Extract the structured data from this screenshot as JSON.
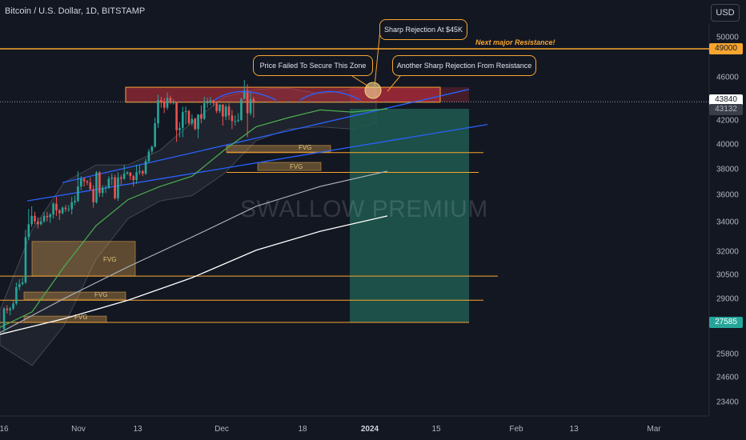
{
  "header": {
    "symbol_title": "Bitcoin / U.S. Dollar, 1D, BITSTAMP",
    "currency_button": "USD"
  },
  "watermark": "SWALLOW PREMIUM",
  "annotations": {
    "callouts": [
      {
        "text": "Sharp Rejection At $45K"
      },
      {
        "text": "Price Failed To Secure This Zone"
      },
      {
        "text": "Another Sharp Rejection From Resistance"
      }
    ],
    "resistance_label": "Next major Resistance!",
    "fvg_labels": [
      "FVG",
      "FVG",
      "FVG",
      "FVG",
      "FVG"
    ]
  },
  "colors": {
    "background": "#131722",
    "up_candle": "#26a69a",
    "down_candle": "#ef5350",
    "resistance": "#f7a530",
    "channel": "#2962ff",
    "ema_fast": "#4caf50",
    "ma_slow": "#b2b5be",
    "ma_slowest": "#ffffff",
    "target_zone": "#1e5b4f"
  },
  "chart_data": {
    "type": "candlestick",
    "title": "Bitcoin / U.S. Dollar, 1D, BITSTAMP",
    "x_tick_labels": [
      "16",
      "Nov",
      "13",
      "Dec",
      "18",
      "2024",
      "15",
      "Feb",
      "13",
      "Mar"
    ],
    "y_tick_labels": [
      "50000",
      "46000",
      "42000",
      "40000",
      "38000",
      "36000",
      "34000",
      "32000",
      "30500",
      "29000",
      "25800",
      "24600",
      "23400"
    ],
    "y_scale": "log",
    "ylim": [
      22500,
      52500
    ],
    "price_tags": {
      "resistance": "49000",
      "last_price": "43840",
      "secondary": "43132",
      "target": "27585"
    },
    "levels": {
      "next_major_resistance": 49000,
      "last_price": 43840,
      "target": 27585,
      "support_lines": [
        39400,
        37800,
        30400,
        28900,
        27585
      ],
      "supply_zone": [
        43800,
        45200
      ]
    },
    "candles": [
      {
        "d": "2023-10-16",
        "o": 27200,
        "h": 28500,
        "l": 27000,
        "c": 28400
      },
      {
        "d": "2023-10-17",
        "o": 28400,
        "h": 28600,
        "l": 28100,
        "c": 28300
      },
      {
        "d": "2023-10-18",
        "o": 28300,
        "h": 28500,
        "l": 28000,
        "c": 28400
      },
      {
        "d": "2023-10-19",
        "o": 28400,
        "h": 28900,
        "l": 28300,
        "c": 28700
      },
      {
        "d": "2023-10-20",
        "o": 28700,
        "h": 30000,
        "l": 28600,
        "c": 29700
      },
      {
        "d": "2023-10-21",
        "o": 29700,
        "h": 30200,
        "l": 29500,
        "c": 29900
      },
      {
        "d": "2023-10-22",
        "o": 29900,
        "h": 30300,
        "l": 29800,
        "c": 30000
      },
      {
        "d": "2023-10-23",
        "o": 30000,
        "h": 33500,
        "l": 29900,
        "c": 33000
      },
      {
        "d": "2023-10-24",
        "o": 33000,
        "h": 35000,
        "l": 32800,
        "c": 33900
      },
      {
        "d": "2023-10-25",
        "o": 33900,
        "h": 35200,
        "l": 33700,
        "c": 34500
      },
      {
        "d": "2023-10-26",
        "o": 34500,
        "h": 34800,
        "l": 33900,
        "c": 34100
      },
      {
        "d": "2023-10-27",
        "o": 34100,
        "h": 34400,
        "l": 33600,
        "c": 33900
      },
      {
        "d": "2023-10-28",
        "o": 33900,
        "h": 34400,
        "l": 33800,
        "c": 34100
      },
      {
        "d": "2023-10-29",
        "o": 34100,
        "h": 34800,
        "l": 34000,
        "c": 34500
      },
      {
        "d": "2023-10-30",
        "o": 34500,
        "h": 34800,
        "l": 34100,
        "c": 34400
      },
      {
        "d": "2023-10-31",
        "o": 34400,
        "h": 34700,
        "l": 34000,
        "c": 34600
      },
      {
        "d": "2023-11-01",
        "o": 34600,
        "h": 35500,
        "l": 34300,
        "c": 35400
      },
      {
        "d": "2023-11-02",
        "o": 35400,
        "h": 35900,
        "l": 34500,
        "c": 34900
      },
      {
        "d": "2023-11-03",
        "o": 34900,
        "h": 35000,
        "l": 34200,
        "c": 34700
      },
      {
        "d": "2023-11-04",
        "o": 34700,
        "h": 35200,
        "l": 34600,
        "c": 35100
      },
      {
        "d": "2023-11-05",
        "o": 35100,
        "h": 35300,
        "l": 34800,
        "c": 35000
      },
      {
        "d": "2023-11-06",
        "o": 35000,
        "h": 35300,
        "l": 34800,
        "c": 35000
      },
      {
        "d": "2023-11-07",
        "o": 35000,
        "h": 35900,
        "l": 34600,
        "c": 35500
      },
      {
        "d": "2023-11-08",
        "o": 35500,
        "h": 36000,
        "l": 35300,
        "c": 35600
      },
      {
        "d": "2023-11-09",
        "o": 35600,
        "h": 37900,
        "l": 35500,
        "c": 36700
      },
      {
        "d": "2023-11-10",
        "o": 36700,
        "h": 37500,
        "l": 36400,
        "c": 37300
      },
      {
        "d": "2023-11-11",
        "o": 37300,
        "h": 37400,
        "l": 36700,
        "c": 37100
      },
      {
        "d": "2023-11-12",
        "o": 37100,
        "h": 37200,
        "l": 36800,
        "c": 37000
      },
      {
        "d": "2023-11-13",
        "o": 37000,
        "h": 37400,
        "l": 36400,
        "c": 36500
      },
      {
        "d": "2023-11-14",
        "o": 36500,
        "h": 36800,
        "l": 35100,
        "c": 35500
      },
      {
        "d": "2023-11-15",
        "o": 35500,
        "h": 37900,
        "l": 35400,
        "c": 37800
      },
      {
        "d": "2023-11-16",
        "o": 37800,
        "h": 37900,
        "l": 35900,
        "c": 36200
      },
      {
        "d": "2023-11-17",
        "o": 36200,
        "h": 36800,
        "l": 35900,
        "c": 36600
      },
      {
        "d": "2023-11-18",
        "o": 36600,
        "h": 36800,
        "l": 36200,
        "c": 36600
      },
      {
        "d": "2023-11-19",
        "o": 36600,
        "h": 37500,
        "l": 36500,
        "c": 37300
      },
      {
        "d": "2023-11-20",
        "o": 37300,
        "h": 37700,
        "l": 36800,
        "c": 37400
      },
      {
        "d": "2023-11-21",
        "o": 37400,
        "h": 37600,
        "l": 35700,
        "c": 35800
      },
      {
        "d": "2023-11-22",
        "o": 35800,
        "h": 37800,
        "l": 35600,
        "c": 37400
      },
      {
        "d": "2023-11-23",
        "o": 37400,
        "h": 37600,
        "l": 36800,
        "c": 37300
      },
      {
        "d": "2023-11-24",
        "o": 37300,
        "h": 38400,
        "l": 37200,
        "c": 37700
      },
      {
        "d": "2023-11-25",
        "o": 37700,
        "h": 37900,
        "l": 37600,
        "c": 37800
      },
      {
        "d": "2023-11-26",
        "o": 37800,
        "h": 37800,
        "l": 37200,
        "c": 37500
      },
      {
        "d": "2023-11-27",
        "o": 37500,
        "h": 37600,
        "l": 36700,
        "c": 37200
      },
      {
        "d": "2023-11-28",
        "o": 37200,
        "h": 38400,
        "l": 36900,
        "c": 37800
      },
      {
        "d": "2023-11-29",
        "o": 37800,
        "h": 38400,
        "l": 37600,
        "c": 37900
      },
      {
        "d": "2023-11-30",
        "o": 37900,
        "h": 38000,
        "l": 37500,
        "c": 37700
      },
      {
        "d": "2023-12-01",
        "o": 37700,
        "h": 38900,
        "l": 37600,
        "c": 38700
      },
      {
        "d": "2023-12-02",
        "o": 38700,
        "h": 39700,
        "l": 38600,
        "c": 39500
      },
      {
        "d": "2023-12-03",
        "o": 39500,
        "h": 40000,
        "l": 39300,
        "c": 39900
      },
      {
        "d": "2023-12-04",
        "o": 39900,
        "h": 42400,
        "l": 39800,
        "c": 41900
      },
      {
        "d": "2023-12-05",
        "o": 41900,
        "h": 44500,
        "l": 41500,
        "c": 44000
      },
      {
        "d": "2023-12-06",
        "o": 44000,
        "h": 44300,
        "l": 43300,
        "c": 43800
      },
      {
        "d": "2023-12-07",
        "o": 43800,
        "h": 44200,
        "l": 42800,
        "c": 43300
      },
      {
        "d": "2023-12-08",
        "o": 43300,
        "h": 44700,
        "l": 43100,
        "c": 44200
      },
      {
        "d": "2023-12-09",
        "o": 44200,
        "h": 44400,
        "l": 43600,
        "c": 43800
      },
      {
        "d": "2023-12-10",
        "o": 43800,
        "h": 44100,
        "l": 43600,
        "c": 43800
      },
      {
        "d": "2023-12-11",
        "o": 43800,
        "h": 43800,
        "l": 40300,
        "c": 41300
      },
      {
        "d": "2023-12-12",
        "o": 41300,
        "h": 42000,
        "l": 40700,
        "c": 41500
      },
      {
        "d": "2023-12-13",
        "o": 41500,
        "h": 43400,
        "l": 40700,
        "c": 42900
      },
      {
        "d": "2023-12-14",
        "o": 42900,
        "h": 43400,
        "l": 41800,
        "c": 43000
      },
      {
        "d": "2023-12-15",
        "o": 43000,
        "h": 43100,
        "l": 41700,
        "c": 41900
      },
      {
        "d": "2023-12-16",
        "o": 41900,
        "h": 42700,
        "l": 41700,
        "c": 42300
      },
      {
        "d": "2023-12-17",
        "o": 42300,
        "h": 42400,
        "l": 41300,
        "c": 41400
      },
      {
        "d": "2023-12-18",
        "o": 41400,
        "h": 42700,
        "l": 40600,
        "c": 42700
      },
      {
        "d": "2023-12-19",
        "o": 42700,
        "h": 43500,
        "l": 41900,
        "c": 42300
      },
      {
        "d": "2023-12-20",
        "o": 42300,
        "h": 44300,
        "l": 42200,
        "c": 43700
      },
      {
        "d": "2023-12-21",
        "o": 43700,
        "h": 44200,
        "l": 43300,
        "c": 43900
      },
      {
        "d": "2023-12-22",
        "o": 43900,
        "h": 44300,
        "l": 43500,
        "c": 44000
      },
      {
        "d": "2023-12-23",
        "o": 44000,
        "h": 44000,
        "l": 43400,
        "c": 43700
      },
      {
        "d": "2023-12-24",
        "o": 43700,
        "h": 43900,
        "l": 42800,
        "c": 43000
      },
      {
        "d": "2023-12-25",
        "o": 43000,
        "h": 43500,
        "l": 42800,
        "c": 43600
      },
      {
        "d": "2023-12-26",
        "o": 43600,
        "h": 43600,
        "l": 41700,
        "c": 42500
      },
      {
        "d": "2023-12-27",
        "o": 42500,
        "h": 43600,
        "l": 42200,
        "c": 43400
      },
      {
        "d": "2023-12-28",
        "o": 43400,
        "h": 43700,
        "l": 42200,
        "c": 42600
      },
      {
        "d": "2023-12-29",
        "o": 42600,
        "h": 43100,
        "l": 41400,
        "c": 42100
      },
      {
        "d": "2023-12-30",
        "o": 42100,
        "h": 42600,
        "l": 41700,
        "c": 42100
      },
      {
        "d": "2023-12-31",
        "o": 42100,
        "h": 42800,
        "l": 42000,
        "c": 42200
      },
      {
        "d": "2024-01-01",
        "o": 42200,
        "h": 44200,
        "l": 42100,
        "c": 44100
      },
      {
        "d": "2024-01-02",
        "o": 44100,
        "h": 45900,
        "l": 44100,
        "c": 44900
      },
      {
        "d": "2024-01-03",
        "o": 44900,
        "h": 45500,
        "l": 40700,
        "c": 42800
      },
      {
        "d": "2024-01-04",
        "o": 42800,
        "h": 44700,
        "l": 42600,
        "c": 44100
      },
      {
        "d": "2024-01-05",
        "o": 44100,
        "h": 44300,
        "l": 42400,
        "c": 43840
      }
    ]
  }
}
